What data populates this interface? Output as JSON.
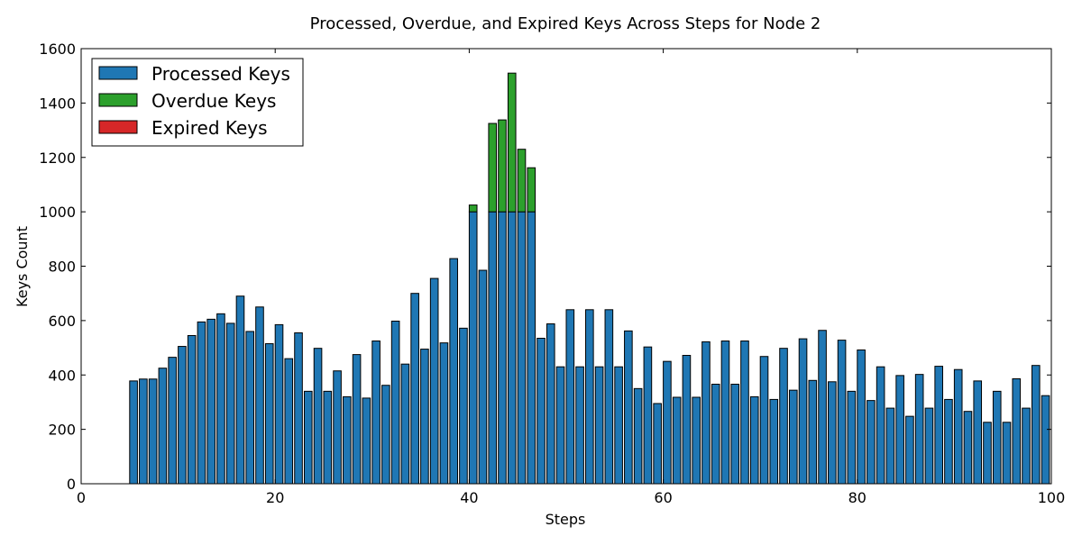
{
  "chart_data": {
    "type": "bar",
    "stacked": true,
    "title": "Processed, Overdue, and Expired Keys Across Steps for Node 2",
    "xlabel": "Steps",
    "ylabel": "Keys Count",
    "xlim": [
      0,
      100
    ],
    "ylim": [
      0,
      1600
    ],
    "xticks": [
      0,
      20,
      40,
      60,
      80,
      100
    ],
    "yticks": [
      0,
      200,
      400,
      600,
      800,
      1000,
      1200,
      1400,
      1600
    ],
    "grid": false,
    "legend_position": "top-left",
    "steps": [
      0,
      1,
      2,
      3,
      4,
      5,
      6,
      7,
      8,
      9,
      10,
      11,
      12,
      13,
      14,
      15,
      16,
      17,
      18,
      19,
      20,
      21,
      22,
      23,
      24,
      25,
      26,
      27,
      28,
      29,
      30,
      31,
      32,
      33,
      34,
      35,
      36,
      37,
      38,
      39,
      40,
      41,
      42,
      43,
      44,
      45,
      46,
      47,
      48,
      49,
      50,
      51,
      52,
      53,
      54,
      55,
      56,
      57,
      58,
      59,
      60,
      61,
      62,
      63,
      64,
      65,
      66,
      67,
      68,
      69,
      70,
      71,
      72,
      73,
      74,
      75,
      76,
      77,
      78,
      79,
      80,
      81,
      82,
      83,
      84,
      85,
      86,
      87,
      88,
      89,
      90,
      91,
      92,
      93,
      94,
      95,
      96,
      97,
      98,
      99
    ],
    "series": [
      {
        "name": "Processed Keys",
        "color": "#1f77b4",
        "values": [
          0,
          0,
          0,
          0,
          0,
          378,
          385,
          385,
          425,
          465,
          505,
          545,
          595,
          605,
          625,
          590,
          690,
          560,
          650,
          515,
          585,
          460,
          555,
          340,
          498,
          340,
          415,
          320,
          475,
          315,
          525,
          362,
          598,
          440,
          700,
          495,
          755,
          518,
          828,
          572,
          1000,
          785,
          1000,
          1000,
          1000,
          1000,
          1000,
          535,
          588,
          430,
          640,
          430,
          640,
          430,
          640,
          430,
          562,
          350,
          503,
          295,
          450,
          318,
          472,
          318,
          522,
          366,
          525,
          366,
          525,
          320,
          468,
          310,
          498,
          344,
          533,
          380,
          564,
          375,
          528,
          340,
          492,
          306,
          430,
          278,
          398,
          248,
          402,
          278,
          432,
          310,
          420,
          266,
          378,
          226,
          340,
          226,
          386,
          278,
          435,
          324
        ]
      },
      {
        "name": "Overdue Keys",
        "color": "#2ca02c",
        "values": [
          0,
          0,
          0,
          0,
          0,
          0,
          0,
          0,
          0,
          0,
          0,
          0,
          0,
          0,
          0,
          0,
          0,
          0,
          0,
          0,
          0,
          0,
          0,
          0,
          0,
          0,
          0,
          0,
          0,
          0,
          0,
          0,
          0,
          0,
          0,
          0,
          0,
          0,
          0,
          0,
          25,
          0,
          325,
          338,
          510,
          230,
          162,
          0,
          0,
          0,
          0,
          0,
          0,
          0,
          0,
          0,
          0,
          0,
          0,
          0,
          0,
          0,
          0,
          0,
          0,
          0,
          0,
          0,
          0,
          0,
          0,
          0,
          0,
          0,
          0,
          0,
          0,
          0,
          0,
          0,
          0,
          0,
          0,
          0,
          0,
          0,
          0,
          0,
          0,
          0,
          0,
          0,
          0,
          0,
          0,
          0,
          0,
          0,
          0,
          0
        ]
      },
      {
        "name": "Expired Keys",
        "color": "#d62728",
        "values": [
          0,
          0,
          0,
          0,
          0,
          0,
          0,
          0,
          0,
          0,
          0,
          0,
          0,
          0,
          0,
          0,
          0,
          0,
          0,
          0,
          0,
          0,
          0,
          0,
          0,
          0,
          0,
          0,
          0,
          0,
          0,
          0,
          0,
          0,
          0,
          0,
          0,
          0,
          0,
          0,
          0,
          0,
          0,
          0,
          0,
          0,
          0,
          0,
          0,
          0,
          0,
          0,
          0,
          0,
          0,
          0,
          0,
          0,
          0,
          0,
          0,
          0,
          0,
          0,
          0,
          0,
          0,
          0,
          0,
          0,
          0,
          0,
          0,
          0,
          0,
          0,
          0,
          0,
          0,
          0,
          0,
          0,
          0,
          0,
          0,
          0,
          0,
          0,
          0,
          0,
          0,
          0,
          0,
          0,
          0,
          0,
          0,
          0,
          0,
          0
        ]
      }
    ]
  }
}
